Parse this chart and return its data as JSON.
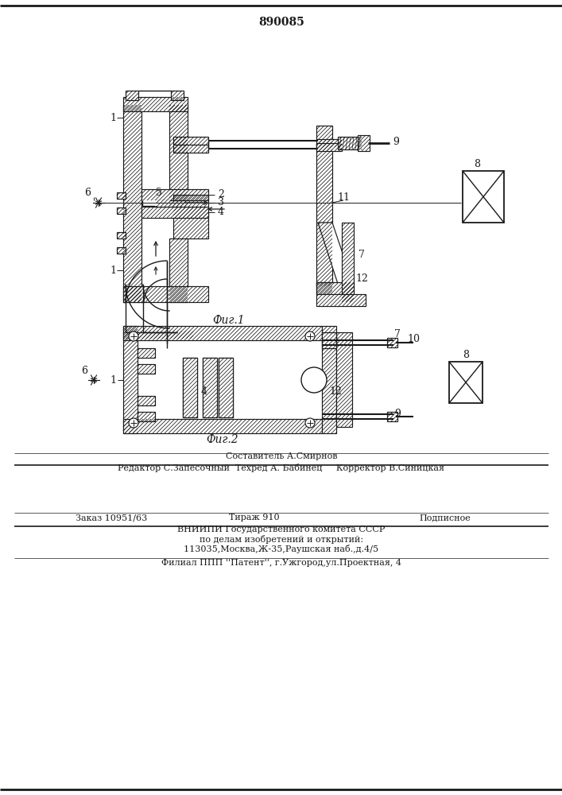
{
  "patent_number": "890085",
  "fig1_label": "Фиг.1",
  "fig2_label": "Фиг.2",
  "footer_line1": "Составитель А.Смирнов",
  "footer_line2": "Редактор С.Запесочный  Техред А. Бабинец     Корректор В.Синицкая",
  "footer_line3a": "Заказ 10951/63",
  "footer_line3b": "Тираж 910",
  "footer_line3c": "Подписное",
  "footer_line4": "ВНИИПИ Государственного комитета СССР",
  "footer_line5": "по делам изобретений и открытий:",
  "footer_line6": "113035,Москва,Ж-35,Раушская наб.,д.4/5",
  "footer_line7": "Филиал ППП ''Патент'', г.Ужгород,ул.Проектная, 4",
  "line_color": "#1a1a1a"
}
